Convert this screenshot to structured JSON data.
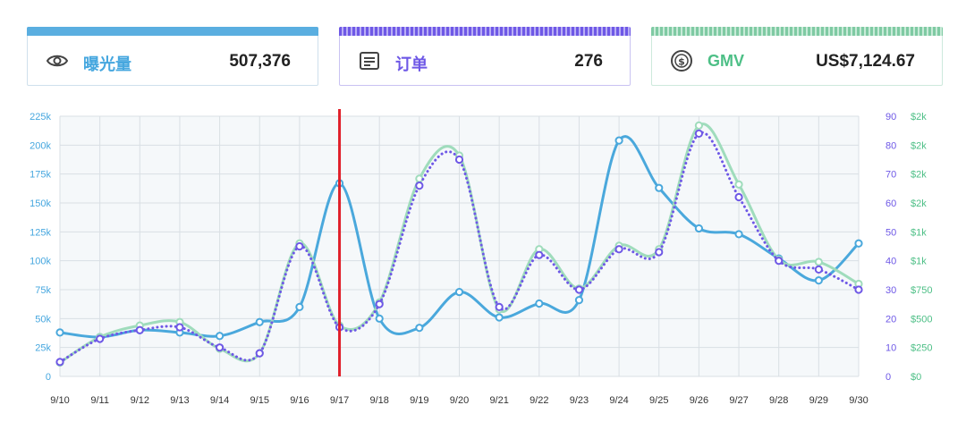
{
  "cards": {
    "views": {
      "label": "曝光量",
      "value": "507,376",
      "icon": "eye-icon",
      "color": "#46a7df"
    },
    "orders": {
      "label": "订单",
      "value": "276",
      "icon": "receipt-icon",
      "color": "#6e58e6"
    },
    "gmv": {
      "label": "GMV",
      "value": "US$7,124.67",
      "icon": "dollar-coin-icon",
      "color": "#4dbf86"
    }
  },
  "chart_data": {
    "type": "line",
    "title": "",
    "x": [
      "9/10",
      "9/11",
      "9/12",
      "9/13",
      "9/14",
      "9/15",
      "9/16",
      "9/17",
      "9/18",
      "9/19",
      "9/20",
      "9/21",
      "9/22",
      "9/23",
      "9/24",
      "9/25",
      "9/26",
      "9/27",
      "9/28",
      "9/29",
      "9/30"
    ],
    "highlight_x": "9/17",
    "highlight_color": "#e0202a",
    "grid": true,
    "axes": {
      "left": {
        "ylim": [
          0,
          225000
        ],
        "ticks": [
          "0",
          "25k",
          "50k",
          "75k",
          "100k",
          "125k",
          "150k",
          "175k",
          "200k",
          "225k"
        ],
        "color": "#46a7df"
      },
      "right1": {
        "ylim": [
          0,
          90
        ],
        "ticks": [
          "0",
          "10",
          "20",
          "30",
          "40",
          "50",
          "60",
          "70",
          "80",
          "90"
        ],
        "color": "#6e58e6"
      },
      "right2": {
        "ylim": [
          0,
          2250
        ],
        "ticks": [
          "$0",
          "$250",
          "$500",
          "$750",
          "$1k",
          "$1k",
          "$2k",
          "$2k",
          "$2k",
          "$2k"
        ],
        "color": "#4dbf86"
      }
    },
    "series": [
      {
        "name": "曝光量",
        "axis": "left",
        "color": "#4aa8dc",
        "style": "solid",
        "values": [
          38000,
          34000,
          40000,
          38000,
          35000,
          47000,
          60000,
          167000,
          50000,
          42000,
          73000,
          51000,
          63000,
          66000,
          204000,
          163000,
          128000,
          123000,
          102000,
          83000,
          115000
        ]
      },
      {
        "name": "GMV",
        "axis": "right2",
        "color": "#9fdcbc",
        "style": "solid",
        "values": [
          120,
          340,
          440,
          470,
          240,
          200,
          1150,
          440,
          640,
          1710,
          1910,
          580,
          1100,
          760,
          1130,
          1100,
          2170,
          1660,
          1010,
          990,
          800
        ]
      },
      {
        "name": "订单",
        "axis": "right1",
        "color": "#6e58e6",
        "style": "dotted",
        "values": [
          5,
          13,
          16,
          17,
          10,
          8,
          45,
          17,
          25,
          66,
          75,
          24,
          42,
          30,
          44,
          43,
          84,
          62,
          40,
          37,
          30
        ]
      }
    ]
  }
}
